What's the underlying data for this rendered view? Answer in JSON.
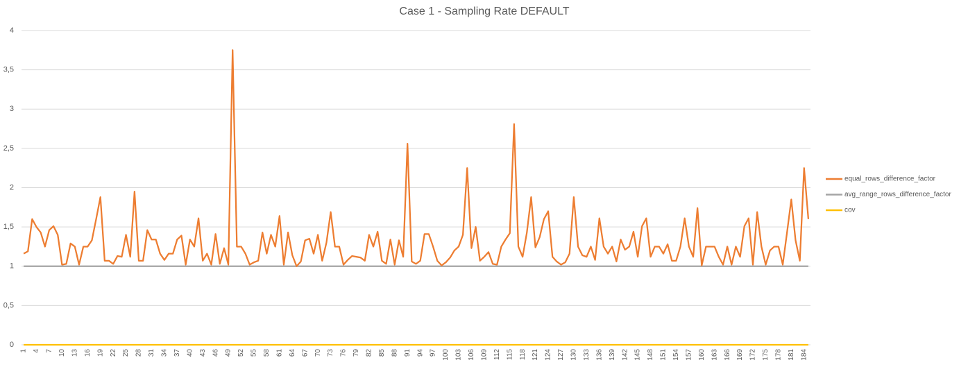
{
  "chart_data": {
    "type": "line",
    "title": "Case 1 - Sampling Rate DEFAULT",
    "categories": [
      "1",
      null,
      null,
      "4",
      null,
      null,
      "7",
      null,
      null,
      "10",
      null,
      null,
      "13",
      null,
      null,
      "16",
      null,
      null,
      "19",
      null,
      null,
      "22",
      null,
      null,
      "25",
      null,
      null,
      "28",
      null,
      null,
      "31",
      null,
      null,
      "34",
      null,
      null,
      "37",
      null,
      null,
      "40",
      null,
      null,
      "43",
      null,
      null,
      "46",
      null,
      null,
      "49",
      null,
      null,
      "52",
      null,
      null,
      "55",
      null,
      null,
      "58",
      null,
      null,
      "61",
      null,
      null,
      "64",
      null,
      null,
      "67",
      null,
      null,
      "70",
      null,
      null,
      "73",
      null,
      null,
      "76",
      null,
      null,
      "79",
      null,
      null,
      "82",
      null,
      null,
      "85",
      null,
      null,
      "88",
      null,
      null,
      "91",
      null,
      null,
      "94",
      null,
      null,
      "97",
      null,
      null,
      "100",
      null,
      null,
      "103",
      null,
      null,
      "106",
      null,
      null,
      "109",
      null,
      null,
      "112",
      null,
      null,
      "115",
      null,
      null,
      "118",
      null,
      null,
      "121",
      null,
      null,
      "124",
      null,
      null,
      "127",
      null,
      null,
      "130",
      null,
      null,
      "133",
      null,
      null,
      "136",
      null,
      null,
      "139",
      null,
      null,
      "142",
      null,
      null,
      "145",
      null,
      null,
      "148",
      null,
      null,
      "151",
      null,
      null,
      "154",
      null,
      null,
      "157",
      null,
      null,
      "160",
      null,
      null,
      "163",
      null,
      null,
      "166",
      null,
      null,
      "169",
      null,
      null,
      "172",
      null,
      null,
      "175",
      null,
      null,
      "178",
      null,
      null,
      "181",
      null,
      null,
      "184",
      null
    ],
    "series": [
      {
        "name": "equal_rows_difference_factor",
        "color": "#ed7d31",
        "values": [
          1.16,
          1.19,
          1.6,
          1.5,
          1.43,
          1.25,
          1.46,
          1.51,
          1.4,
          1.02,
          1.03,
          1.29,
          1.25,
          1.02,
          1.25,
          1.25,
          1.33,
          1.6,
          1.88,
          1.07,
          1.07,
          1.03,
          1.13,
          1.12,
          1.4,
          1.12,
          1.95,
          1.07,
          1.07,
          1.46,
          1.34,
          1.34,
          1.16,
          1.08,
          1.16,
          1.16,
          1.34,
          1.39,
          1.02,
          1.34,
          1.25,
          1.61,
          1.07,
          1.16,
          1.02,
          1.41,
          1.03,
          1.23,
          1.02,
          3.75,
          1.25,
          1.25,
          1.16,
          1.02,
          1.05,
          1.07,
          1.43,
          1.16,
          1.4,
          1.25,
          1.64,
          1.02,
          1.43,
          1.14,
          1.0,
          1.06,
          1.33,
          1.35,
          1.16,
          1.4,
          1.07,
          1.3,
          1.69,
          1.25,
          1.25,
          1.02,
          1.08,
          1.13,
          1.12,
          1.11,
          1.07,
          1.4,
          1.25,
          1.44,
          1.07,
          1.03,
          1.34,
          1.02,
          1.33,
          1.12,
          2.56,
          1.06,
          1.03,
          1.07,
          1.41,
          1.41,
          1.25,
          1.07,
          1.01,
          1.05,
          1.11,
          1.2,
          1.25,
          1.4,
          2.25,
          1.23,
          1.5,
          1.07,
          1.12,
          1.18,
          1.03,
          1.02,
          1.25,
          1.34,
          1.42,
          2.81,
          1.25,
          1.12,
          1.43,
          1.88,
          1.24,
          1.37,
          1.6,
          1.7,
          1.12,
          1.06,
          1.02,
          1.05,
          1.16,
          1.88,
          1.25,
          1.14,
          1.12,
          1.25,
          1.08,
          1.61,
          1.25,
          1.16,
          1.25,
          1.06,
          1.34,
          1.21,
          1.25,
          1.44,
          1.12,
          1.51,
          1.61,
          1.12,
          1.25,
          1.25,
          1.16,
          1.28,
          1.07,
          1.07,
          1.25,
          1.61,
          1.25,
          1.12,
          1.74,
          1.01,
          1.25,
          1.25,
          1.25,
          1.12,
          1.02,
          1.25,
          1.02,
          1.25,
          1.12,
          1.51,
          1.61,
          1.02,
          1.69,
          1.25,
          1.02,
          1.2,
          1.25,
          1.25,
          1.02,
          1.43,
          1.85,
          1.33,
          1.07,
          2.25,
          1.6
        ]
      },
      {
        "name": "avg_range_rows_difference_factor",
        "color": "#a5a5a5",
        "values": [
          1,
          1,
          1,
          1,
          1,
          1,
          1,
          1,
          1,
          1,
          1,
          1,
          1,
          1,
          1,
          1,
          1,
          1,
          1,
          1,
          1,
          1,
          1,
          1,
          1,
          1,
          1,
          1,
          1,
          1,
          1,
          1,
          1,
          1,
          1,
          1,
          1,
          1,
          1,
          1,
          1,
          1,
          1,
          1,
          1,
          1,
          1,
          1,
          1,
          1,
          1,
          1,
          1,
          1,
          1,
          1,
          1,
          1,
          1,
          1,
          1,
          1,
          1,
          1,
          1,
          1,
          1,
          1,
          1,
          1,
          1,
          1,
          1,
          1,
          1,
          1,
          1,
          1,
          1,
          1,
          1,
          1,
          1,
          1,
          1,
          1,
          1,
          1,
          1,
          1,
          1,
          1,
          1,
          1,
          1,
          1,
          1,
          1,
          1,
          1,
          1,
          1,
          1,
          1,
          1,
          1,
          1,
          1,
          1,
          1,
          1,
          1,
          1,
          1,
          1,
          1,
          1,
          1,
          1,
          1,
          1,
          1,
          1,
          1,
          1,
          1,
          1,
          1,
          1,
          1,
          1,
          1,
          1,
          1,
          1,
          1,
          1,
          1,
          1,
          1,
          1,
          1,
          1,
          1,
          1,
          1,
          1,
          1,
          1,
          1,
          1,
          1,
          1,
          1,
          1,
          1,
          1,
          1,
          1,
          1,
          1,
          1,
          1,
          1,
          1,
          1,
          1,
          1,
          1,
          1,
          1,
          1,
          1,
          1,
          1,
          1,
          1,
          1,
          1,
          1,
          1,
          1,
          1,
          1,
          1
        ]
      },
      {
        "name": "cov",
        "color": "#ffc000",
        "values": [
          0,
          0,
          0,
          0,
          0,
          0,
          0,
          0,
          0,
          0,
          0,
          0,
          0,
          0,
          0,
          0,
          0,
          0,
          0,
          0,
          0,
          0,
          0,
          0,
          0,
          0,
          0,
          0,
          0,
          0,
          0,
          0,
          0,
          0,
          0,
          0,
          0,
          0,
          0,
          0,
          0,
          0,
          0,
          0,
          0,
          0,
          0,
          0,
          0,
          0,
          0,
          0,
          0,
          0,
          0,
          0,
          0,
          0,
          0,
          0,
          0,
          0,
          0,
          0,
          0,
          0,
          0,
          0,
          0,
          0,
          0,
          0,
          0,
          0,
          0,
          0,
          0,
          0,
          0,
          0,
          0,
          0,
          0,
          0,
          0,
          0,
          0,
          0,
          0,
          0,
          0,
          0,
          0,
          0,
          0,
          0,
          0,
          0,
          0,
          0,
          0,
          0,
          0,
          0,
          0,
          0,
          0,
          0,
          0,
          0,
          0,
          0,
          0,
          0,
          0,
          0,
          0,
          0,
          0,
          0,
          0,
          0,
          0,
          0,
          0,
          0,
          0,
          0,
          0,
          0,
          0,
          0,
          0,
          0,
          0,
          0,
          0,
          0,
          0,
          0,
          0,
          0,
          0,
          0,
          0,
          0,
          0,
          0,
          0,
          0,
          0,
          0,
          0,
          0,
          0,
          0,
          0,
          0,
          0,
          0,
          0,
          0,
          0,
          0,
          0,
          0,
          0,
          0,
          0,
          0,
          0,
          0,
          0,
          0,
          0,
          0,
          0,
          0,
          0,
          0,
          0,
          0,
          0,
          0,
          0
        ]
      }
    ],
    "ylim": [
      0,
      4
    ],
    "yticks": [
      0,
      {
        "value": 0.5,
        "label": "0,5"
      },
      1,
      {
        "value": 1.5,
        "label": "1,5"
      },
      2,
      {
        "value": 2.5,
        "label": "2,5"
      },
      3,
      {
        "value": 3.5,
        "label": "3,5"
      },
      4
    ],
    "grid": true,
    "legend": "right"
  }
}
